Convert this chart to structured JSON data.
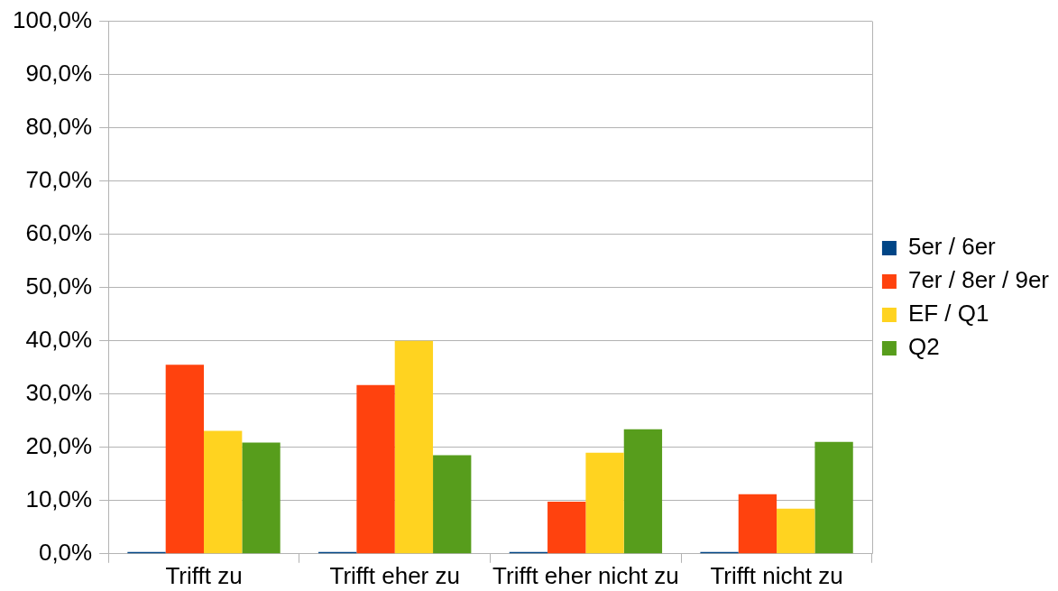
{
  "chart_data": {
    "type": "bar",
    "categories": [
      "Trifft zu",
      "Trifft eher zu",
      "Trifft eher nicht zu",
      "Trifft nicht zu"
    ],
    "series": [
      {
        "name": "5er / 6er",
        "color": "#004586",
        "values": [
          0,
          0,
          0,
          0
        ]
      },
      {
        "name": "7er / 8er / 9er",
        "color": "#ff420e",
        "values": [
          35.5,
          31.7,
          9.8,
          11.2
        ]
      },
      {
        "name": "EF / Q1",
        "color": "#ffd320",
        "values": [
          23.1,
          40.0,
          19.0,
          8.5
        ]
      },
      {
        "name": "Q2",
        "color": "#579d1c",
        "values": [
          20.9,
          18.5,
          23.4,
          21.0
        ]
      }
    ],
    "ylim": [
      0,
      100
    ],
    "yticks": [
      {
        "value": 0,
        "label": "0,0%"
      },
      {
        "value": 10,
        "label": "10,0%"
      },
      {
        "value": 20,
        "label": "20,0%"
      },
      {
        "value": 30,
        "label": "30,0%"
      },
      {
        "value": 40,
        "label": "40,0%"
      },
      {
        "value": 50,
        "label": "50,0%"
      },
      {
        "value": 60,
        "label": "60,0%"
      },
      {
        "value": 70,
        "label": "70,0%"
      },
      {
        "value": 80,
        "label": "80,0%"
      },
      {
        "value": 90,
        "label": "90,0%"
      },
      {
        "value": 100,
        "label": "100,0%"
      }
    ],
    "grid": "y",
    "legend": "right"
  }
}
